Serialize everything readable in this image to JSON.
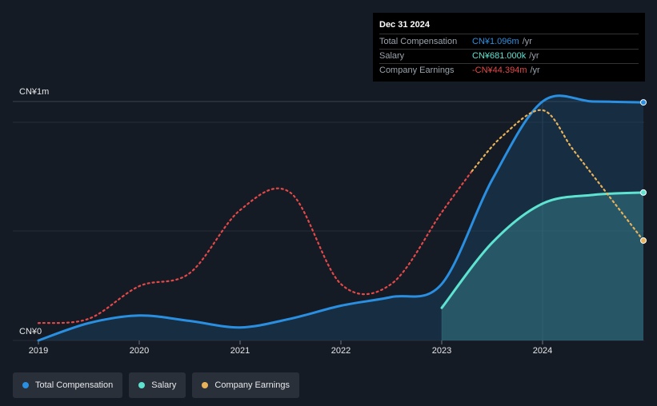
{
  "colors": {
    "total": "#2a8fe0",
    "salary": "#5fe3d1",
    "earnings": "#e54848",
    "earnings_future": "#e8b25a",
    "grid": "#2c333d",
    "background": "#151b24"
  },
  "tooltip": {
    "date": "Dec 31 2024",
    "rows": [
      {
        "name": "Total Compensation",
        "value": "CN¥1.096m",
        "unit": "/yr",
        "color": "#2a8fe0"
      },
      {
        "name": "Salary",
        "value": "CN¥681.000k",
        "unit": "/yr",
        "color": "#5fe3d1"
      },
      {
        "name": "Company Earnings",
        "value": "-CN¥44.394m",
        "unit": "/yr",
        "color": "#e54848"
      }
    ]
  },
  "legend": [
    {
      "label": "Total Compensation",
      "color": "#2a8fe0"
    },
    {
      "label": "Salary",
      "color": "#5fe3d1"
    },
    {
      "label": "Company Earnings",
      "color": "#e8b25a"
    }
  ],
  "chart_data": {
    "type": "line",
    "xlabel": "",
    "ylabel": "",
    "x_ticks": [
      "2019",
      "2020",
      "2021",
      "2022",
      "2023",
      "2024"
    ],
    "y_ticks": [
      "CN¥0",
      "CN¥1m"
    ],
    "xlim": [
      2019.0,
      2025.0
    ],
    "ylim": [
      0,
      1.1
    ],
    "series": [
      {
        "name": "Total Compensation",
        "color": "#2a8fe0",
        "area": true,
        "x": [
          2019.0,
          2019.5,
          2020.0,
          2020.5,
          2021.0,
          2021.5,
          2022.0,
          2022.5,
          2023.0,
          2023.5,
          2024.0,
          2024.5,
          2025.0
        ],
        "y": [
          0.0,
          0.08,
          0.115,
          0.09,
          0.06,
          0.1,
          0.16,
          0.2,
          0.26,
          0.74,
          1.1,
          1.1,
          1.096
        ]
      },
      {
        "name": "Salary",
        "color": "#5fe3d1",
        "area": true,
        "x": [
          2023.0,
          2023.5,
          2024.0,
          2024.5,
          2025.0
        ],
        "y": [
          0.15,
          0.45,
          0.63,
          0.67,
          0.681
        ]
      },
      {
        "name": "Company Earnings",
        "color": "#e54848",
        "future_color": "#e8b25a",
        "dotted": true,
        "x": [
          2019.0,
          2019.5,
          2020.0,
          2020.5,
          2021.0,
          2021.5,
          2022.0,
          2022.5,
          2023.0,
          2023.3,
          2023.6,
          2024.0,
          2024.3,
          2024.6,
          2025.0
        ],
        "y": [
          0.08,
          0.1,
          0.25,
          0.31,
          0.6,
          0.68,
          0.26,
          0.26,
          0.59,
          0.78,
          0.94,
          1.06,
          0.88,
          0.7,
          0.46
        ]
      }
    ]
  }
}
